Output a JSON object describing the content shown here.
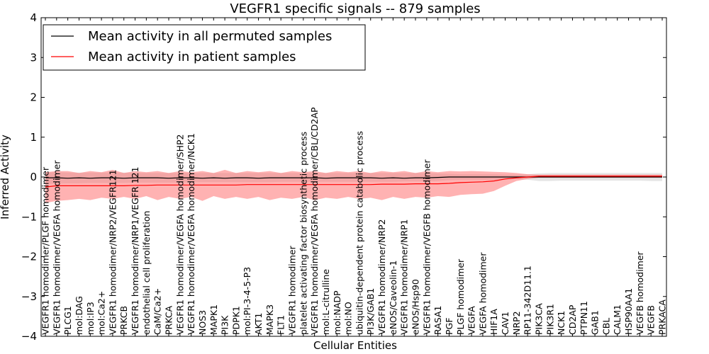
{
  "chart_data": {
    "type": "line",
    "title": "VEGFR1 specific signals -- 879 samples",
    "xlabel": "Cellular Entities",
    "ylabel": "Inferred Activity",
    "ylim": [
      -4,
      4
    ],
    "yticks": [
      4,
      3,
      2,
      1,
      0,
      -1,
      -2,
      -3,
      -4
    ],
    "grid": false,
    "legend": {
      "placement": "top-left",
      "entries": [
        {
          "label": "Mean activity in all permuted samples",
          "color": "#000000"
        },
        {
          "label": "Mean activity in patient samples",
          "color": "#ff0000"
        }
      ]
    },
    "categories": [
      "VEGFR1 homodimer/PLGF homodimer",
      "VEGFR1 homodimer/VEGFA homodimer",
      "PLCG1",
      "mol:DAG",
      "mol:IP3",
      "mol:Ca2+",
      "VEGFR1 homodimer/NRP2/VEGFR121",
      "PRKCB",
      "VEGFR1 homodimer/NRP1/VEGFR 121",
      "endothelial cell proliferation",
      "CaM/Ca2+",
      "PRKCA",
      "VEGFR1 homodimer/VEGFA homodimer/SHP2",
      "VEGFR1 homodimer/VEGFA homodimer/NCK1",
      "NOS3",
      "MAPK1",
      "PI3K",
      "PDPK1",
      "mol:PI-3-4-5-P3",
      "AKT1",
      "MAPK3",
      "FLT1",
      "VEGFR1 homodimer",
      "platelet activating factor biosynthetic process",
      "VEGFR1 homodimer/VEGFA homodimer/CBL/CD2AP",
      "mol:L-citrulline",
      "mol:NADP",
      "mol:NO",
      "ubiquitin-dependent protein catabolic process",
      "PI3K/GAB1",
      "VEGFR1 homodimer/NRP2",
      "eNOS/Caveolin-1",
      "VEGFR1 homodimer/NRP1",
      "eNOS/Hsp90",
      "VEGFR1 homodimer/VEGFB homodimer",
      "RASA1",
      "PGF",
      "PLGF homodimer",
      "VEGFA",
      "VEGFA homodimer",
      "HIF1A",
      "CAV1",
      "NRP2",
      "RP11-342D11.1",
      "PIK3CA",
      "PIK3R1",
      "NCK1",
      "CD2AP",
      "PTPN11",
      "GAB1",
      "CBL",
      "CALM1",
      "HSP90AA1",
      "VEGFB homodimer",
      "VEGFB",
      "PRKACA"
    ],
    "series": [
      {
        "name": "Mean activity in all permuted samples",
        "color": "#000000",
        "values": [
          -0.02,
          -0.02,
          -0.03,
          -0.02,
          -0.03,
          -0.02,
          -0.02,
          -0.03,
          -0.02,
          -0.02,
          -0.02,
          -0.03,
          -0.02,
          -0.02,
          -0.03,
          -0.02,
          -0.03,
          -0.02,
          -0.02,
          -0.03,
          -0.02,
          -0.02,
          -0.02,
          -0.02,
          -0.02,
          -0.03,
          -0.02,
          -0.02,
          -0.02,
          -0.02,
          -0.03,
          -0.02,
          -0.03,
          -0.02,
          -0.02,
          -0.01,
          0.0,
          0.0,
          0.0,
          0.0,
          0.0,
          0.0,
          0.0,
          0.0,
          0.0,
          0.0,
          0.0,
          0.0,
          0.0,
          0.0,
          0.0,
          0.0,
          0.0,
          0.0,
          0.0,
          0.0
        ],
        "band_low": [
          -0.18,
          -0.17,
          -0.16,
          -0.16,
          -0.15,
          -0.15,
          -0.15,
          -0.15,
          -0.14,
          -0.14,
          -0.14,
          -0.14,
          -0.14,
          -0.13,
          -0.13,
          -0.13,
          -0.13,
          -0.13,
          -0.13,
          -0.13,
          -0.13,
          -0.12,
          -0.12,
          -0.12,
          -0.12,
          -0.12,
          -0.12,
          -0.12,
          -0.12,
          -0.12,
          -0.12,
          -0.12,
          -0.11,
          -0.11,
          -0.11,
          -0.1,
          -0.08,
          -0.07,
          -0.07,
          -0.07,
          -0.07,
          -0.06,
          -0.05,
          -0.07,
          -0.1,
          -0.1,
          -0.09,
          -0.09,
          -0.09,
          -0.09,
          -0.09,
          -0.09,
          -0.09,
          -0.09,
          -0.1,
          -0.1
        ],
        "band_high": [
          0.12,
          0.12,
          0.11,
          0.11,
          0.11,
          0.11,
          0.11,
          0.11,
          0.1,
          0.1,
          0.1,
          0.1,
          0.1,
          0.1,
          0.1,
          0.1,
          0.1,
          0.1,
          0.1,
          0.1,
          0.1,
          0.1,
          0.1,
          0.1,
          0.1,
          0.1,
          0.1,
          0.1,
          0.1,
          0.1,
          0.1,
          0.1,
          0.1,
          0.1,
          0.1,
          0.09,
          0.08,
          0.07,
          0.07,
          0.07,
          0.07,
          0.06,
          0.06,
          0.07,
          0.09,
          0.1,
          0.1,
          0.1,
          0.1,
          0.1,
          0.1,
          0.1,
          0.1,
          0.1,
          0.1,
          0.1
        ]
      },
      {
        "name": "Mean activity in patient samples",
        "color": "#ff0000",
        "values": [
          -0.25,
          -0.22,
          -0.22,
          -0.22,
          -0.22,
          -0.22,
          -0.22,
          -0.22,
          -0.21,
          -0.21,
          -0.2,
          -0.2,
          -0.2,
          -0.2,
          -0.2,
          -0.2,
          -0.2,
          -0.2,
          -0.19,
          -0.19,
          -0.19,
          -0.19,
          -0.19,
          -0.19,
          -0.19,
          -0.19,
          -0.19,
          -0.19,
          -0.19,
          -0.19,
          -0.18,
          -0.18,
          -0.18,
          -0.17,
          -0.17,
          -0.17,
          -0.16,
          -0.14,
          -0.13,
          -0.12,
          -0.1,
          -0.05,
          -0.02,
          0.0,
          0.02,
          0.02,
          0.02,
          0.02,
          0.02,
          0.02,
          0.02,
          0.02,
          0.02,
          0.02,
          0.02,
          0.02
        ],
        "band_low": [
          -0.65,
          -0.6,
          -0.58,
          -0.55,
          -0.58,
          -0.52,
          -0.55,
          -0.5,
          -0.55,
          -0.48,
          -0.58,
          -0.5,
          -0.55,
          -0.5,
          -0.6,
          -0.48,
          -0.55,
          -0.5,
          -0.55,
          -0.5,
          -0.58,
          -0.52,
          -0.55,
          -0.5,
          -0.58,
          -0.52,
          -0.55,
          -0.5,
          -0.55,
          -0.52,
          -0.58,
          -0.5,
          -0.55,
          -0.5,
          -0.52,
          -0.48,
          -0.5,
          -0.45,
          -0.43,
          -0.42,
          -0.35,
          -0.22,
          -0.1,
          -0.05,
          -0.02,
          -0.02,
          -0.02,
          -0.02,
          -0.02,
          -0.02,
          -0.02,
          -0.02,
          -0.02,
          -0.02,
          -0.02,
          -0.02
        ],
        "band_high": [
          0.12,
          0.15,
          0.15,
          0.1,
          0.15,
          0.12,
          0.18,
          0.1,
          0.15,
          0.12,
          0.15,
          0.1,
          0.15,
          0.12,
          0.15,
          0.1,
          0.18,
          0.1,
          0.15,
          0.12,
          0.15,
          0.1,
          0.15,
          0.12,
          0.15,
          0.1,
          0.15,
          0.12,
          0.15,
          0.1,
          0.15,
          0.12,
          0.15,
          0.1,
          0.15,
          0.12,
          0.15,
          0.14,
          0.15,
          0.14,
          0.13,
          0.12,
          0.1,
          0.07,
          0.06,
          0.06,
          0.06,
          0.06,
          0.06,
          0.06,
          0.06,
          0.06,
          0.06,
          0.06,
          0.06,
          0.06
        ]
      }
    ]
  }
}
